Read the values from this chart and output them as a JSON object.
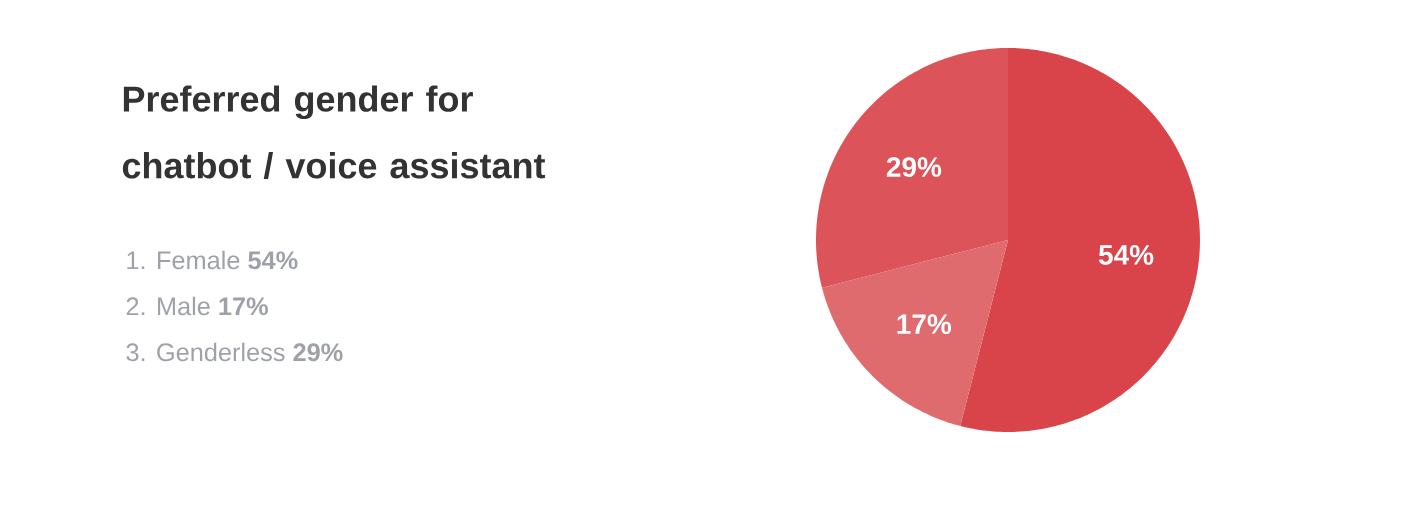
{
  "chart_data": {
    "type": "pie",
    "title": "Preferred gender for chatbot / voice assistant",
    "categories": [
      null,
      null,
      null
    ],
    "values": [
      54,
      17,
      29
    ],
    "value_labels": [
      "54%",
      "17%",
      "29%"
    ],
    "colors": [
      "#d9444a",
      "#e06b6e",
      "#dc5459"
    ],
    "annotations": [
      "1.  Female **54%**",
      "2.  Male **17%**",
      "3.  Genderless **29%**"
    ]
  }
}
